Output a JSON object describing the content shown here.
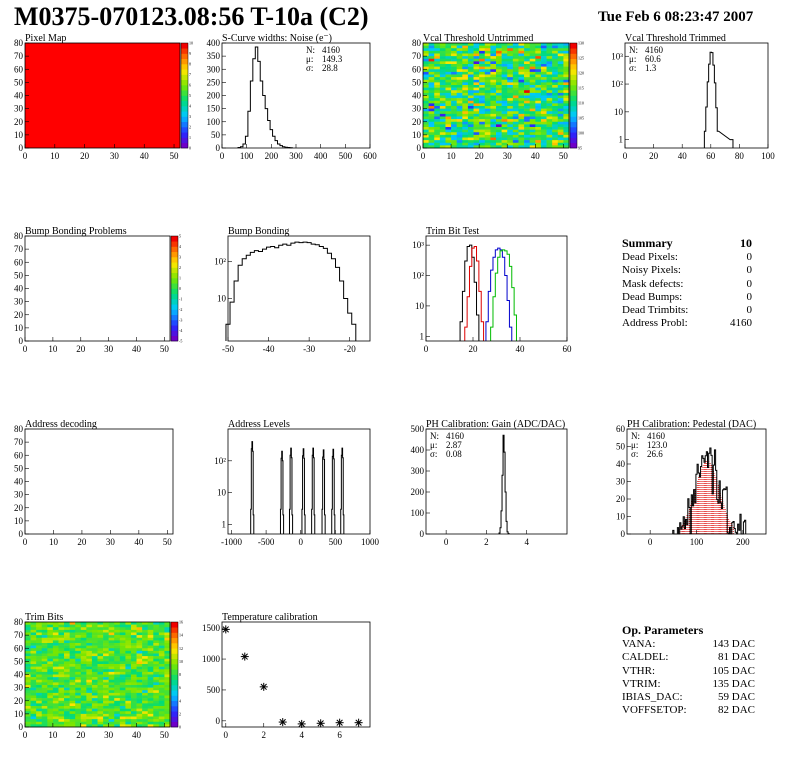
{
  "header": {
    "title": "M0375-070123.08:56 T-10a (C2)",
    "date": "Tue Feb  6 08:23:47 2007"
  },
  "colors": {
    "histogram": "#000000",
    "trim_series": [
      "#000000",
      "#dd0000",
      "#0000cc",
      "#00bb00"
    ],
    "pedestal_fit": "#dd0000",
    "pixel_map_fill": "#ff0000"
  },
  "summary": {
    "title": "Summary",
    "value": "10",
    "rows": [
      {
        "label": "Dead Pixels:",
        "value": "0"
      },
      {
        "label": "Noisy Pixels:",
        "value": "0"
      },
      {
        "label": "Mask defects:",
        "value": "0"
      },
      {
        "label": "Dead Bumps:",
        "value": "0"
      },
      {
        "label": "Dead Trimbits:",
        "value": "0"
      },
      {
        "label": "Address Probl:",
        "value": "4160"
      }
    ]
  },
  "op_parameters": {
    "title": "Op. Parameters",
    "rows": [
      {
        "label": "VANA:",
        "value": "143 DAC"
      },
      {
        "label": "CALDEL:",
        "value": "81 DAC"
      },
      {
        "label": "VTHR:",
        "value": "105 DAC"
      },
      {
        "label": "VTRIM:",
        "value": "135 DAC"
      },
      {
        "label": "IBIAS_DAC:",
        "value": "59 DAC"
      },
      {
        "label": "VOFFSETOP:",
        "value": "82 DAC"
      }
    ]
  },
  "chart_data": [
    {
      "type": "heatmap",
      "title": "Pixel Map",
      "xlim": [
        0,
        52
      ],
      "ylim": [
        0,
        80
      ],
      "xticks": [
        0,
        10,
        20,
        30,
        40,
        50
      ],
      "yticks": [
        0,
        10,
        20,
        30,
        40,
        50,
        60,
        70,
        80
      ],
      "fill": "uniform",
      "value": 10,
      "zlim": [
        0,
        10
      ],
      "zticks": [
        "0",
        "1",
        "2",
        "3",
        "4",
        "5",
        "6",
        "7",
        "8",
        "9",
        "10"
      ]
    },
    {
      "type": "histogram",
      "title": "S-Curve widths: Noise (e⁻)",
      "xlim": [
        0,
        600
      ],
      "ylim": [
        0,
        400
      ],
      "xticks": [
        0,
        100,
        200,
        300,
        400,
        500,
        600
      ],
      "yticks": [
        0,
        50,
        100,
        150,
        200,
        250,
        300,
        350,
        400
      ],
      "stats": [
        [
          "N:",
          "4160"
        ],
        [
          "μ:",
          "149.3"
        ],
        [
          "σ:",
          "28.8"
        ]
      ],
      "bins": [
        [
          70,
          2
        ],
        [
          80,
          5
        ],
        [
          90,
          15
        ],
        [
          100,
          45
        ],
        [
          110,
          140
        ],
        [
          120,
          255
        ],
        [
          130,
          340
        ],
        [
          140,
          385
        ],
        [
          150,
          330
        ],
        [
          160,
          255
        ],
        [
          170,
          200
        ],
        [
          180,
          150
        ],
        [
          190,
          105
        ],
        [
          200,
          70
        ],
        [
          210,
          45
        ],
        [
          220,
          28
        ],
        [
          230,
          15
        ],
        [
          240,
          9
        ],
        [
          250,
          5
        ],
        [
          260,
          3
        ],
        [
          270,
          2
        ],
        [
          280,
          1
        ]
      ],
      "width": 10
    },
    {
      "type": "heatmap",
      "title": "Vcal Threshold Untrimmed",
      "xlim": [
        0,
        52
      ],
      "ylim": [
        0,
        80
      ],
      "xticks": [
        0,
        10,
        20,
        30,
        40,
        50
      ],
      "yticks": [
        0,
        10,
        20,
        30,
        40,
        50,
        60,
        70,
        80
      ],
      "fill": "noise",
      "zticks": [
        "95",
        "100",
        "105",
        "110",
        "115",
        "120",
        "125",
        "130"
      ]
    },
    {
      "type": "histogram",
      "title": "Vcal Threshold Trimmed",
      "xlim": [
        0,
        100
      ],
      "ylog": true,
      "ylim": [
        0.5,
        3000
      ],
      "xticks": [
        0,
        20,
        40,
        60,
        80,
        100
      ],
      "yticks": [
        1,
        10,
        100,
        1000
      ],
      "ytick_labels": [
        "1",
        "10",
        "10²",
        "10³"
      ],
      "stats": [
        [
          "N:",
          "4160"
        ],
        [
          "μ:",
          "60.6"
        ],
        [
          "σ:",
          "1.3"
        ]
      ],
      "bins": [
        [
          56,
          2
        ],
        [
          57,
          15
        ],
        [
          58,
          120
        ],
        [
          59,
          520
        ],
        [
          60,
          1400
        ],
        [
          61,
          1350
        ],
        [
          62,
          480
        ],
        [
          63,
          110
        ],
        [
          64,
          14
        ],
        [
          65,
          2
        ],
        [
          74,
          1
        ],
        [
          75,
          1
        ]
      ],
      "width": 1
    },
    {
      "type": "heatmap",
      "title": "Bump Bonding Problems",
      "xlim": [
        0,
        52
      ],
      "ylim": [
        0,
        80
      ],
      "xticks": [
        0,
        10,
        20,
        30,
        40,
        50
      ],
      "yticks": [
        0,
        10,
        20,
        30,
        40,
        50,
        60,
        70,
        80
      ],
      "fill": "empty",
      "zticks": [
        "-5",
        "-4",
        "-3",
        "-2",
        "-1",
        "0",
        "1",
        "2",
        "3",
        "4",
        "5"
      ]
    },
    {
      "type": "histogram",
      "title": "Bump Bonding",
      "xlim": [
        -50,
        -15
      ],
      "ylog": true,
      "ylim": [
        0.7,
        500
      ],
      "xticks": [
        -50,
        -40,
        -30,
        -20
      ],
      "yticks": [
        10,
        100
      ],
      "ytick_labels": [
        "10",
        "10²"
      ],
      "bins": [
        [
          -50,
          2
        ],
        [
          -49,
          8
        ],
        [
          -48,
          30
        ],
        [
          -47,
          80
        ],
        [
          -46,
          120
        ],
        [
          -45,
          150
        ],
        [
          -44,
          180
        ],
        [
          -43,
          200
        ],
        [
          -42,
          190
        ],
        [
          -41,
          220
        ],
        [
          -40,
          250
        ],
        [
          -39,
          260
        ],
        [
          -38,
          240
        ],
        [
          -37,
          280
        ],
        [
          -36,
          300
        ],
        [
          -35,
          280
        ],
        [
          -34,
          320
        ],
        [
          -33,
          340
        ],
        [
          -32,
          330
        ],
        [
          -31,
          340
        ],
        [
          -30,
          330
        ],
        [
          -29,
          300
        ],
        [
          -28,
          290
        ],
        [
          -27,
          260
        ],
        [
          -26,
          230
        ],
        [
          -25,
          170
        ],
        [
          -24,
          120
        ],
        [
          -23,
          70
        ],
        [
          -22,
          30
        ],
        [
          -21,
          10
        ],
        [
          -20,
          4
        ],
        [
          -19,
          2
        ]
      ],
      "width": 1
    },
    {
      "type": "histogram",
      "title": "Trim Bit Test",
      "xlim": [
        0,
        60
      ],
      "ylog": true,
      "ylim": [
        0.7,
        2000
      ],
      "xticks": [
        0,
        20,
        40,
        60
      ],
      "yticks": [
        1,
        10,
        100,
        1000
      ],
      "ytick_labels": [
        "1",
        "10",
        "10²",
        "10³"
      ],
      "series": [
        {
          "name": "",
          "color": "#000000",
          "bins": [
            [
              15,
              3
            ],
            [
              16,
              30
            ],
            [
              17,
              300
            ],
            [
              18,
              900
            ],
            [
              19,
              1000
            ],
            [
              20,
              400
            ],
            [
              21,
              60
            ],
            [
              22,
              5
            ]
          ]
        },
        {
          "name": "",
          "color": "#dd0000",
          "bins": [
            [
              17,
              2
            ],
            [
              18,
              20
            ],
            [
              19,
              200
            ],
            [
              20,
              800
            ],
            [
              21,
              900
            ],
            [
              22,
              300
            ],
            [
              23,
              30
            ],
            [
              24,
              3
            ]
          ]
        },
        {
          "name": "",
          "color": "#0000cc",
          "bins": [
            [
              26,
              3
            ],
            [
              27,
              30
            ],
            [
              28,
              150
            ],
            [
              29,
              400
            ],
            [
              30,
              700
            ],
            [
              31,
              800
            ],
            [
              32,
              700
            ],
            [
              33,
              400
            ],
            [
              34,
              100
            ],
            [
              35,
              15
            ],
            [
              36,
              2
            ]
          ]
        },
        {
          "name": "",
          "color": "#00bb00",
          "bins": [
            [
              28,
              2
            ],
            [
              29,
              20
            ],
            [
              30,
              120
            ],
            [
              31,
              400
            ],
            [
              32,
              650
            ],
            [
              33,
              700
            ],
            [
              34,
              650
            ],
            [
              35,
              500
            ],
            [
              36,
              200
            ],
            [
              37,
              40
            ],
            [
              38,
              5
            ]
          ]
        }
      ],
      "width": 1
    },
    {
      "type": "heatmap",
      "title": "Address decoding",
      "xlim": [
        0,
        52
      ],
      "ylim": [
        0,
        80
      ],
      "xticks": [
        0,
        10,
        20,
        30,
        40,
        50
      ],
      "yticks": [
        0,
        10,
        20,
        30,
        40,
        50,
        60,
        70,
        80
      ],
      "fill": "empty"
    },
    {
      "type": "histogram",
      "title": "Address Levels",
      "xlim": [
        -1050,
        1000
      ],
      "ylog": true,
      "ylim": [
        0.5,
        1000
      ],
      "xticks": [
        -1000,
        -500,
        0,
        500,
        1000
      ],
      "yticks": [
        1,
        10,
        100
      ],
      "ytick_labels": [
        "1",
        "10",
        "10²"
      ],
      "peaks": [
        [
          -700,
          400
        ],
        [
          -270,
          200
        ],
        [
          -140,
          250
        ],
        [
          40,
          240
        ],
        [
          180,
          250
        ],
        [
          330,
          220
        ],
        [
          470,
          230
        ],
        [
          600,
          250
        ]
      ],
      "peak_width": 18
    },
    {
      "type": "histogram",
      "title": "PH Calibration: Gain (ADC/DAC)",
      "xlim": [
        -1,
        6
      ],
      "ylim": [
        0,
        500
      ],
      "xticks": [
        0,
        2,
        4
      ],
      "yticks": [
        0,
        100,
        200,
        300,
        400,
        500
      ],
      "stats": [
        [
          "N:",
          "4160"
        ],
        [
          "μ:",
          "2.87"
        ],
        [
          "σ:",
          "0.08"
        ]
      ],
      "bins": [
        [
          2.65,
          5
        ],
        [
          2.7,
          30
        ],
        [
          2.75,
          110
        ],
        [
          2.8,
          280
        ],
        [
          2.85,
          470
        ],
        [
          2.9,
          390
        ],
        [
          2.95,
          200
        ],
        [
          3.0,
          60
        ],
        [
          3.05,
          10
        ],
        [
          3.1,
          2
        ]
      ],
      "width": 0.05
    },
    {
      "type": "histogram",
      "title": "PH Calibration: Pedestal (DAC)",
      "xlim": [
        -50,
        250
      ],
      "ylim": [
        0,
        60
      ],
      "xticks": [
        0,
        100,
        200
      ],
      "yticks": [
        0,
        10,
        20,
        30,
        40,
        50,
        60
      ],
      "stats": [
        [
          "N:",
          "4160"
        ],
        [
          "μ:",
          "123.0"
        ],
        [
          "σ:",
          "26.6"
        ]
      ],
      "stats_color": [
        "#000000",
        "#dd0000",
        "#dd0000"
      ],
      "fit": {
        "mean": 123.0,
        "sigma": 26.6,
        "amplitude": 42
      },
      "noise_seed": 3
    },
    {
      "type": "heatmap",
      "title": "Trim Bits",
      "xlim": [
        0,
        52
      ],
      "ylim": [
        0,
        80
      ],
      "xticks": [
        0,
        10,
        20,
        30,
        40,
        50
      ],
      "yticks": [
        0,
        10,
        20,
        30,
        40,
        50,
        60,
        70,
        80
      ],
      "fill": "trim",
      "zticks": [
        "0",
        "2",
        "4",
        "6",
        "8",
        "10",
        "12",
        "14",
        "16"
      ]
    },
    {
      "type": "scatter",
      "title": "Temperature calibration",
      "xlim": [
        -0.2,
        7.6
      ],
      "ylim": [
        -100,
        1600
      ],
      "xticks": [
        0,
        2,
        4,
        6
      ],
      "yticks": [
        0,
        500,
        1000,
        1500
      ],
      "marker": "*",
      "x": [
        0,
        1,
        2,
        3,
        4,
        5,
        6,
        7
      ],
      "y": [
        1480,
        1040,
        550,
        -20,
        -50,
        -40,
        -30,
        -30
      ]
    }
  ]
}
